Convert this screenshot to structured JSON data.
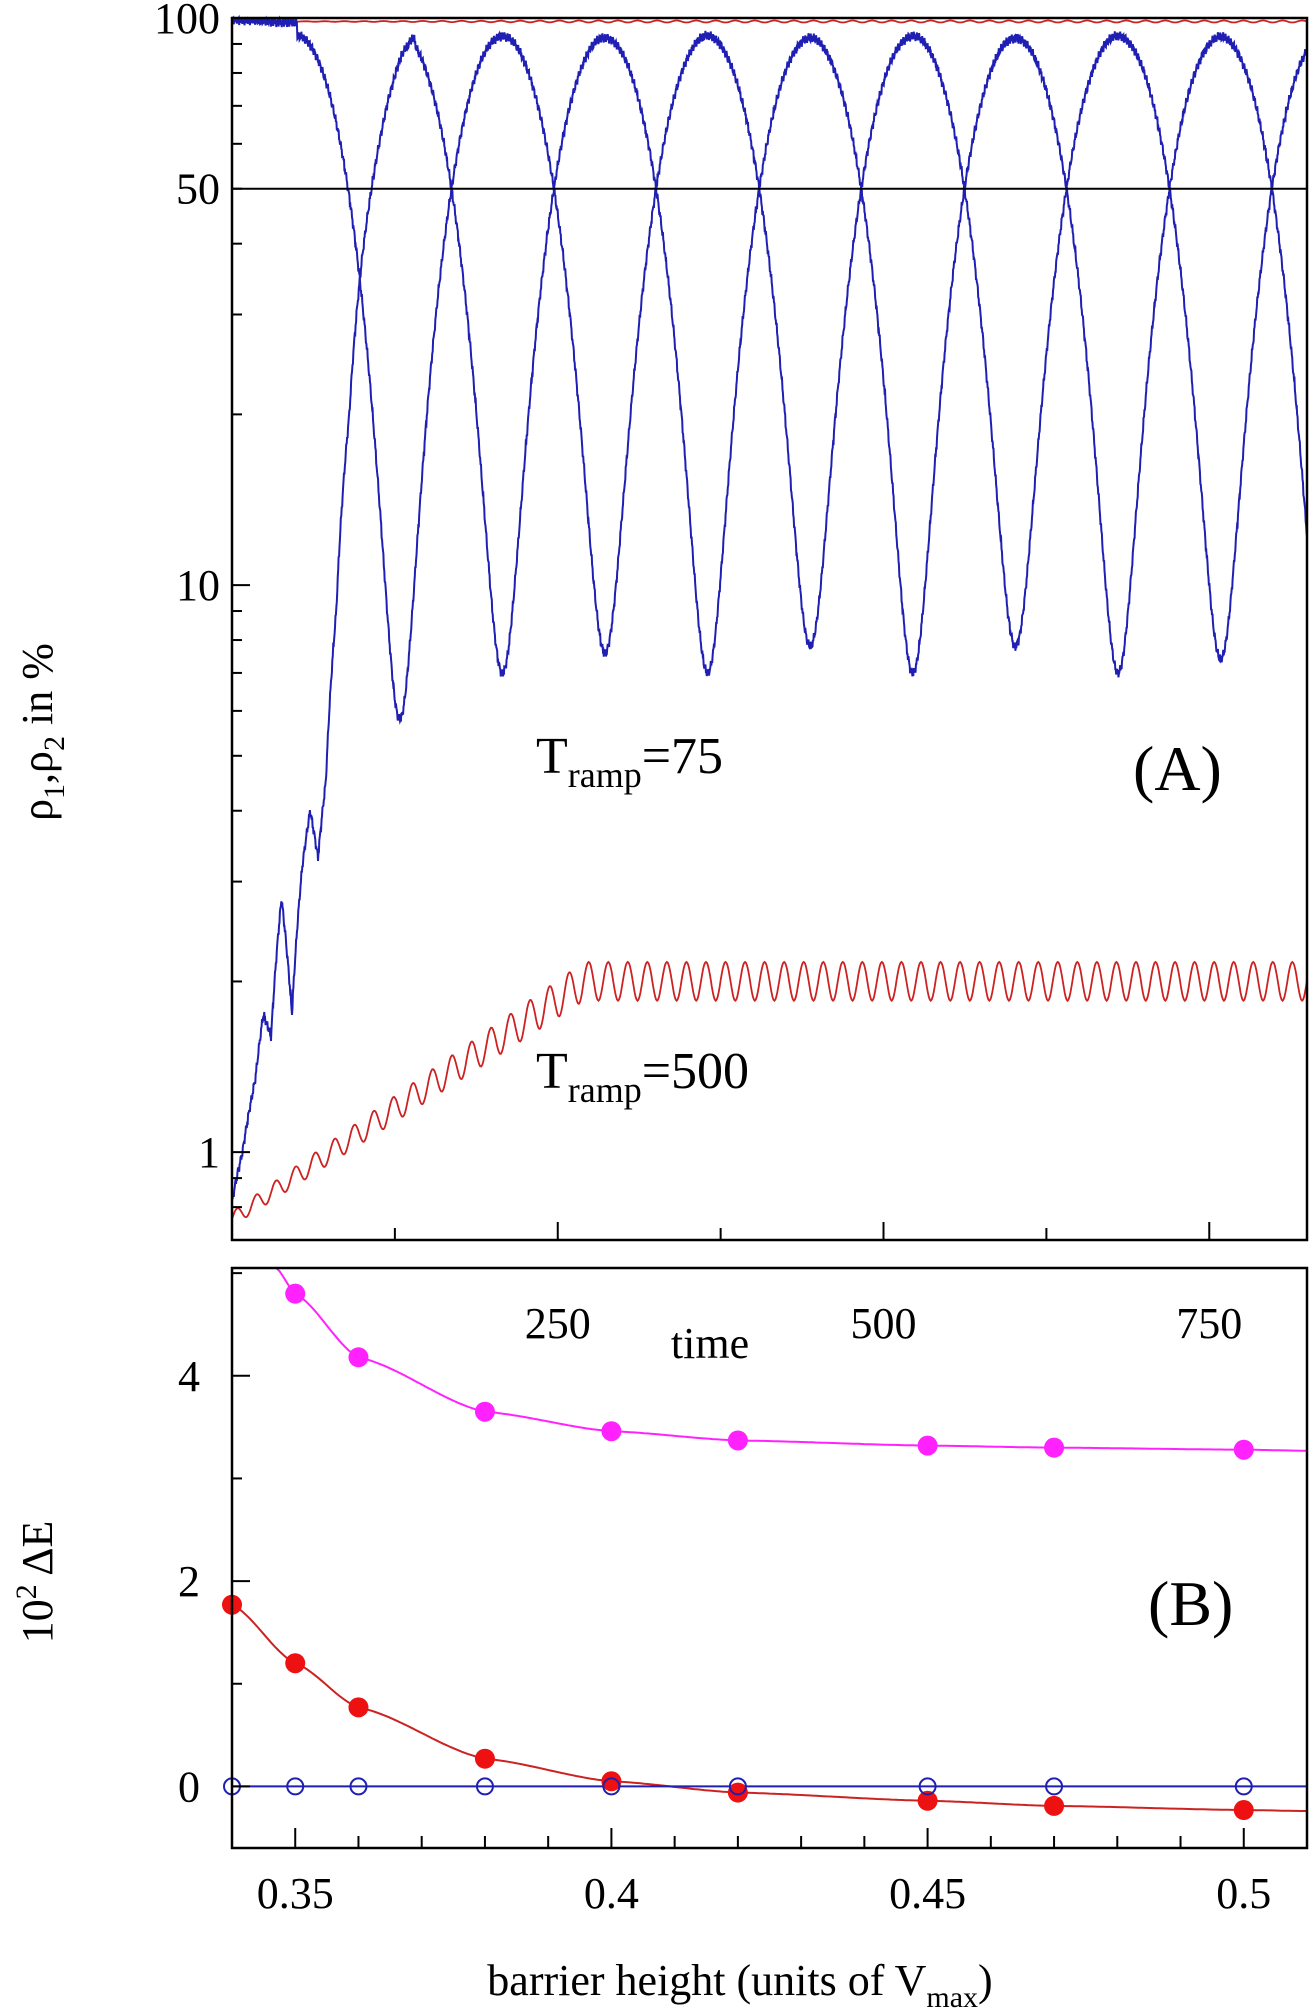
{
  "chart_data": [
    {
      "type": "line",
      "panel": "(A)",
      "xlabel": "time",
      "ylabel_parts": [
        "ρ",
        "1",
        ",ρ",
        "2",
        " in %"
      ],
      "x_ticks": [
        250,
        500,
        750
      ],
      "xlim": [
        0,
        825
      ],
      "ylim": [
        0.7,
        100
      ],
      "yscale": "log",
      "y_ticks": [
        1,
        10,
        50,
        100
      ],
      "reference_line": 50,
      "annotations": [
        {
          "parts": [
            "T",
            "ramp",
            "=75"
          ],
          "color": "#000000"
        },
        {
          "parts": [
            "T",
            "ramp",
            "=500"
          ],
          "color": "#000000"
        }
      ],
      "series": [
        {
          "label": "T_ramp=75",
          "color": "#1f1fb4",
          "description": "two populations, tunneling oscillations between ~7-12% and ~92%, period ~157",
          "x": [
            0,
            10,
            20,
            30,
            40,
            50,
            60,
            70,
            80,
            90,
            100,
            110,
            120,
            130,
            140,
            150,
            160,
            170,
            180
          ],
          "y": [
            0.85,
            1.1,
            1.6,
            2.6,
            1.8,
            3.5,
            4.0,
            5.5,
            15,
            35,
            50,
            75,
            90,
            92,
            88,
            60,
            25,
            8,
            5.8
          ]
        },
        {
          "label": "T_ramp=500",
          "color": "#cc2222",
          "description": "slow ramp: population stays ~99% in one well, small rising oscillation in the other",
          "x": [
            0,
            50,
            100,
            150,
            200,
            250,
            300,
            400,
            500,
            600,
            700,
            825
          ],
          "y": [
            0.72,
            1.0,
            1.25,
            1.55,
            1.85,
            2.0,
            2.0,
            2.0,
            2.0,
            2.0,
            2.0,
            2.0
          ]
        }
      ]
    },
    {
      "type": "scatter",
      "panel": "(B)",
      "xlabel_parts": [
        "barrier height (units of V",
        "max",
        ")"
      ],
      "ylabel_parts": [
        "10",
        "2",
        " ΔE"
      ],
      "xlim": [
        0.34,
        0.51
      ],
      "ylim": [
        -0.6,
        5.05
      ],
      "x_ticks": [
        0.35,
        0.4,
        0.45,
        0.5
      ],
      "x_tick_labels": [
        "0.35",
        "0.4",
        "0.45",
        "0.5"
      ],
      "y_ticks": [
        0,
        2,
        4
      ],
      "series": [
        {
          "label": "magenta",
          "color": "#ff22ff",
          "marker": "filled-circle",
          "x": [
            0.35,
            0.36,
            0.38,
            0.4,
            0.42,
            0.45,
            0.47,
            0.5
          ],
          "y": [
            4.8,
            4.18,
            3.65,
            3.46,
            3.37,
            3.32,
            3.3,
            3.28
          ]
        },
        {
          "label": "red",
          "color": "#ee1111",
          "marker": "filled-circle",
          "x": [
            0.34,
            0.35,
            0.36,
            0.38,
            0.4,
            0.42,
            0.45,
            0.47,
            0.5
          ],
          "y": [
            1.77,
            1.2,
            0.77,
            0.27,
            0.05,
            -0.06,
            -0.14,
            -0.19,
            -0.23
          ]
        },
        {
          "label": "blue",
          "color": "#1f1fb4",
          "marker": "open-circle",
          "x": [
            0.34,
            0.35,
            0.36,
            0.38,
            0.4,
            0.42,
            0.45,
            0.47,
            0.5
          ],
          "y": [
            0,
            0,
            0,
            0,
            0,
            0,
            0,
            0,
            0
          ]
        }
      ]
    }
  ]
}
